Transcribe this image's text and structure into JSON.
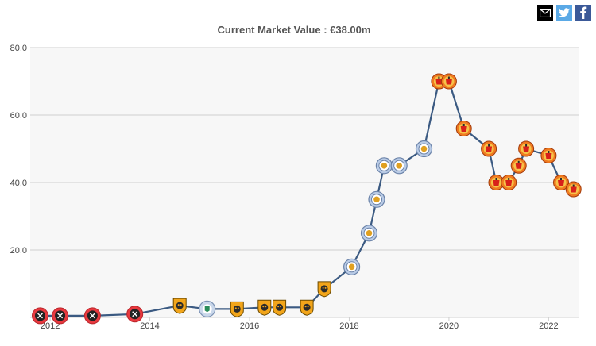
{
  "share": {
    "icons": [
      "email-icon",
      "twitter-icon",
      "facebook-icon"
    ],
    "colors": {
      "email": "#000000",
      "twitter": "#5aa9e6",
      "facebook": "#3b5998"
    }
  },
  "chart_title": "Current Market Value : €38.00m",
  "chart_data": {
    "type": "line",
    "title": "Current Market Value : €38.00m",
    "xlabel": "",
    "ylabel": "",
    "xlim": [
      2011.6,
      2022.6
    ],
    "ylim": [
      0,
      80
    ],
    "x_ticks": [
      2012,
      2014,
      2016,
      2018,
      2020,
      2022
    ],
    "x_tick_labels": [
      "2012",
      "2014",
      "2016",
      "2018",
      "2020",
      "2022"
    ],
    "y_ticks": [
      20,
      40,
      60,
      80
    ],
    "y_tick_labels": [
      "20,0",
      "40,0",
      "60,0",
      "80,0"
    ],
    "grid": true,
    "line_color": "#3b5a82",
    "plot_background": "#f7f7f7",
    "series": [
      {
        "x": [
          2011.8,
          2012.2,
          2012.85,
          2013.7,
          2014.6,
          2015.15,
          2015.75,
          2016.3,
          2016.6,
          2017.15,
          2017.5,
          2018.05,
          2018.4,
          2018.55,
          2018.7,
          2019.0,
          2019.5,
          2019.8,
          2020.0,
          2020.3,
          2020.8,
          2020.95,
          2021.2,
          2021.4,
          2021.55,
          2022.0,
          2022.25,
          2022.5
        ],
        "y": [
          0.5,
          0.5,
          0.5,
          1,
          3.5,
          2.5,
          2.5,
          3,
          3,
          3,
          8.5,
          15,
          25,
          35,
          45,
          45,
          50,
          70,
          70,
          56,
          50,
          40,
          40,
          45,
          50,
          48,
          40,
          38
        ],
        "club": [
          "sheffield-united",
          "sheffield-united",
          "sheffield-united",
          "sheffield-united",
          "hull-city",
          "wigan-athletic",
          "hull-city",
          "hull-city",
          "hull-city",
          "hull-city",
          "hull-city",
          "leicester-city",
          "leicester-city",
          "leicester-city",
          "leicester-city",
          "leicester-city",
          "leicester-city",
          "manchester-united",
          "manchester-united",
          "manchester-united",
          "manchester-united",
          "manchester-united",
          "manchester-united",
          "manchester-united",
          "manchester-united",
          "manchester-united",
          "manchester-united",
          "manchester-united"
        ]
      }
    ]
  },
  "crest_colors": {
    "sheffield-united": {
      "outer": "#e8393f",
      "inner": "#222222"
    },
    "hull-city": {
      "outer": "#f2a51a",
      "inner": "#2b2b2b"
    },
    "wigan-athletic": {
      "outer": "#c9d7ea",
      "inner": "#2a8c5a"
    },
    "leicester-city": {
      "outer": "#b9cbe6",
      "inner": "#e0a020"
    },
    "manchester-united": {
      "outer": "#f07a20",
      "inner": "#d8201a"
    }
  }
}
